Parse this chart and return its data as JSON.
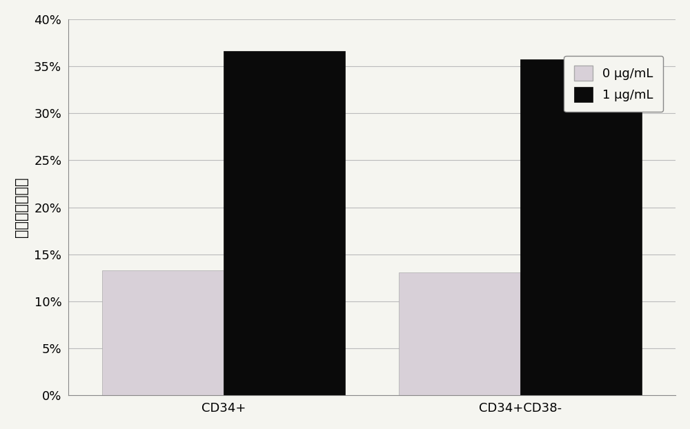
{
  "categories": [
    "CD34+",
    "CD34+CD38-"
  ],
  "series": [
    {
      "label": "0 μg/mL",
      "values": [
        0.133,
        0.131
      ],
      "color": "#d8d0d8",
      "edgecolor": "#aaaaaa",
      "hatch": "..."
    },
    {
      "label": "1 μg/mL",
      "values": [
        0.366,
        0.357
      ],
      "color": "#0a0a0a",
      "edgecolor": "#0a0a0a",
      "hatch": ""
    }
  ],
  "ylabel": "阳性细胞百分比",
  "ylim": [
    0,
    0.4
  ],
  "yticks": [
    0.0,
    0.05,
    0.1,
    0.15,
    0.2,
    0.25,
    0.3,
    0.35,
    0.4
  ],
  "ytick_labels": [
    "0%",
    "5%",
    "10%",
    "15%",
    "20%",
    "25%",
    "30%",
    "35%",
    "40%"
  ],
  "bar_width": 0.18,
  "background_color": "#f5f5f0",
  "grid_color": "#bbbbbb",
  "legend_edgecolor": "#888888",
  "legend_facecolor": "#f5f5f0",
  "group_positions": [
    0.28,
    0.72
  ],
  "xlim": [
    0.05,
    0.95
  ]
}
